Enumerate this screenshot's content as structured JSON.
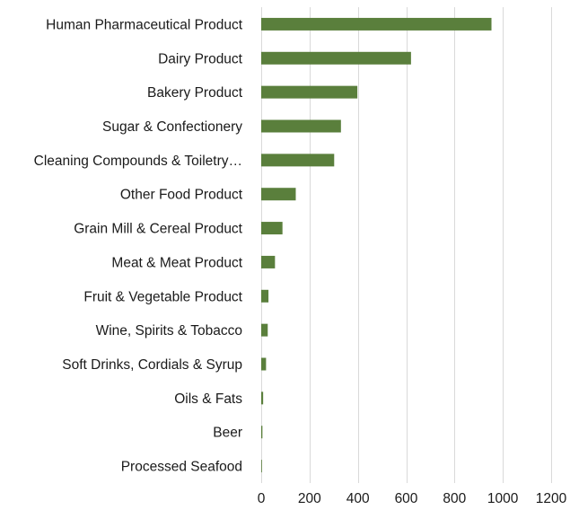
{
  "chart_data": {
    "type": "bar",
    "orientation": "horizontal",
    "title": "",
    "xlabel": "",
    "ylabel": "",
    "categories": [
      "Human Pharmaceutical Product",
      "Dairy Product",
      "Bakery Product",
      "Sugar & Confectionery",
      "Cleaning Compounds & Toiletry…",
      "Other Food Product",
      "Grain Mill & Cereal Product",
      "Meat & Meat Product",
      "Fruit & Vegetable Product",
      "Wine, Spirits & Tobacco",
      "Soft Drinks, Cordials & Syrup",
      "Oils & Fats",
      "Beer",
      "Processed Seafood"
    ],
    "values": [
      953,
      620,
      398,
      330,
      302,
      143,
      88,
      57,
      30,
      27,
      20,
      8,
      5,
      2
    ],
    "xlim": [
      0,
      1200
    ],
    "xticks": [
      "0",
      "200",
      "400",
      "600",
      "800",
      "1000",
      "1200"
    ],
    "grid": true,
    "legend": "none",
    "bar_color": "#5a7f3c"
  }
}
